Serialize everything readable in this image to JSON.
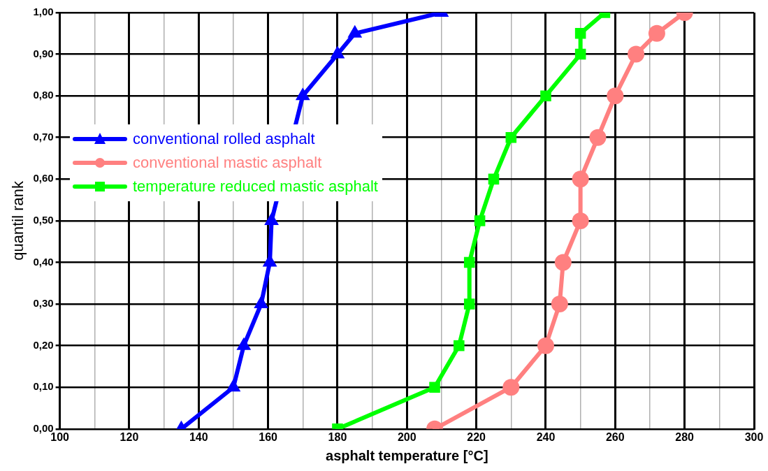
{
  "chart_data": {
    "type": "line",
    "xlabel": "asphalt temperature [°C]",
    "ylabel": "quantil rank",
    "xlim": [
      100,
      300
    ],
    "xticks": [
      100,
      {
        "value": 110,
        "label": null
      },
      120,
      {
        "value": 130,
        "label": null
      },
      140,
      {
        "value": 150,
        "label": null
      },
      160,
      {
        "value": 170,
        "label": null
      },
      180,
      {
        "value": 190,
        "label": null
      },
      200,
      {
        "value": 210,
        "label": null
      },
      220,
      {
        "value": 230,
        "label": null
      },
      240,
      {
        "value": 250,
        "label": null
      },
      260,
      {
        "value": 270,
        "label": null
      },
      280,
      {
        "value": 290,
        "label": null
      },
      300
    ],
    "ylim": [
      0,
      1
    ],
    "yticks": [
      {
        "value": 0,
        "label": "0,00"
      },
      {
        "value": 0.1,
        "label": "0,10"
      },
      {
        "value": 0.2,
        "label": "0,20"
      },
      {
        "value": 0.3,
        "label": "0,30"
      },
      {
        "value": 0.4,
        "label": "0,40"
      },
      {
        "value": 0.5,
        "label": "0,50"
      },
      {
        "value": 0.6,
        "label": "0,60"
      },
      {
        "value": 0.7,
        "label": "0,70"
      },
      {
        "value": 0.8,
        "label": "0,80"
      },
      {
        "value": 0.9,
        "label": "0,90"
      },
      {
        "value": 1,
        "label": "1,00"
      }
    ],
    "grid": true,
    "legend": "left",
    "line_style": "solid",
    "series": [
      {
        "name": "conventional rolled asphalt",
        "color": "#0000ff",
        "marker": "triangle",
        "x": [
          135,
          150,
          153,
          158,
          160.5,
          161,
          170,
          180,
          185,
          210
        ],
        "values": [
          0,
          0.1,
          0.2,
          0.3,
          0.4,
          0.5,
          0.8,
          0.9,
          0.95,
          1
        ]
      },
      {
        "name": "conventional mastic asphalt",
        "color": "#ff8080",
        "marker": "circle",
        "x": [
          208,
          230,
          240,
          244,
          245,
          250,
          250,
          255,
          260,
          266,
          272,
          280
        ],
        "values": [
          0,
          0.1,
          0.2,
          0.3,
          0.4,
          0.5,
          0.6,
          0.7,
          0.8,
          0.9,
          0.95,
          1
        ]
      },
      {
        "name": "temperature reduced mastic asphalt",
        "color": "#00ff00",
        "marker": "square",
        "x": [
          180,
          208,
          215,
          218,
          218,
          221,
          225,
          230,
          240,
          250,
          250,
          257
        ],
        "values": [
          0,
          0.1,
          0.2,
          0.3,
          0.4,
          0.5,
          0.6,
          0.7,
          0.8,
          0.9,
          0.95,
          1
        ]
      }
    ]
  }
}
